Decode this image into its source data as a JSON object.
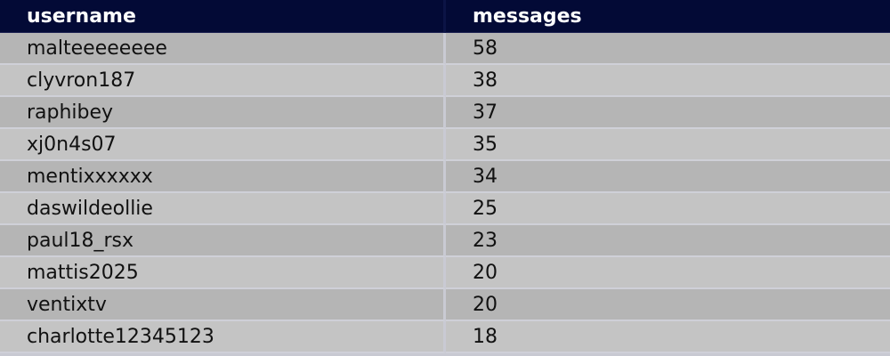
{
  "table": {
    "headers": [
      "username",
      "messages"
    ],
    "rows": [
      [
        "malteeeeeeee",
        "58"
      ],
      [
        "clyvron187",
        "38"
      ],
      [
        "raphibey",
        "37"
      ],
      [
        "xj0n4s07",
        "35"
      ],
      [
        "mentixxxxxx",
        "34"
      ],
      [
        "daswildeollie",
        "25"
      ],
      [
        "paul18_rsx",
        "23"
      ],
      [
        "mattis2025",
        "20"
      ],
      [
        "ventixtv",
        "20"
      ],
      [
        "charlotte12345123",
        "18"
      ]
    ]
  },
  "colors": {
    "header_bg": "#030a36",
    "row_odd": "#b5b5b5",
    "row_even": "#c4c4c4"
  }
}
